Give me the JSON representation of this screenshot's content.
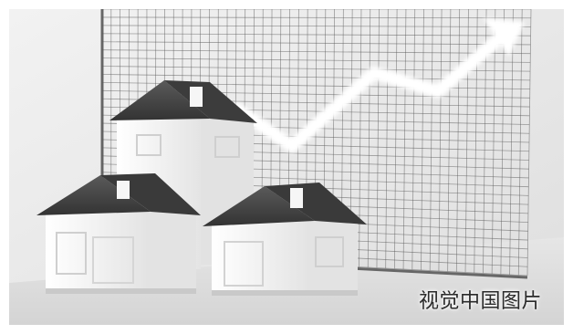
{
  "scene": {
    "description_kind": "photo-illustration",
    "colors": {
      "background": "#e9e9e9",
      "grid_line": "#5a5a5a",
      "arrow": "#ffffff",
      "roof": "#4a4a4a",
      "wall": "#f3f3f3",
      "floor": "#dcdcdc"
    }
  },
  "watermark": {
    "text": "视觉中国图片"
  }
}
